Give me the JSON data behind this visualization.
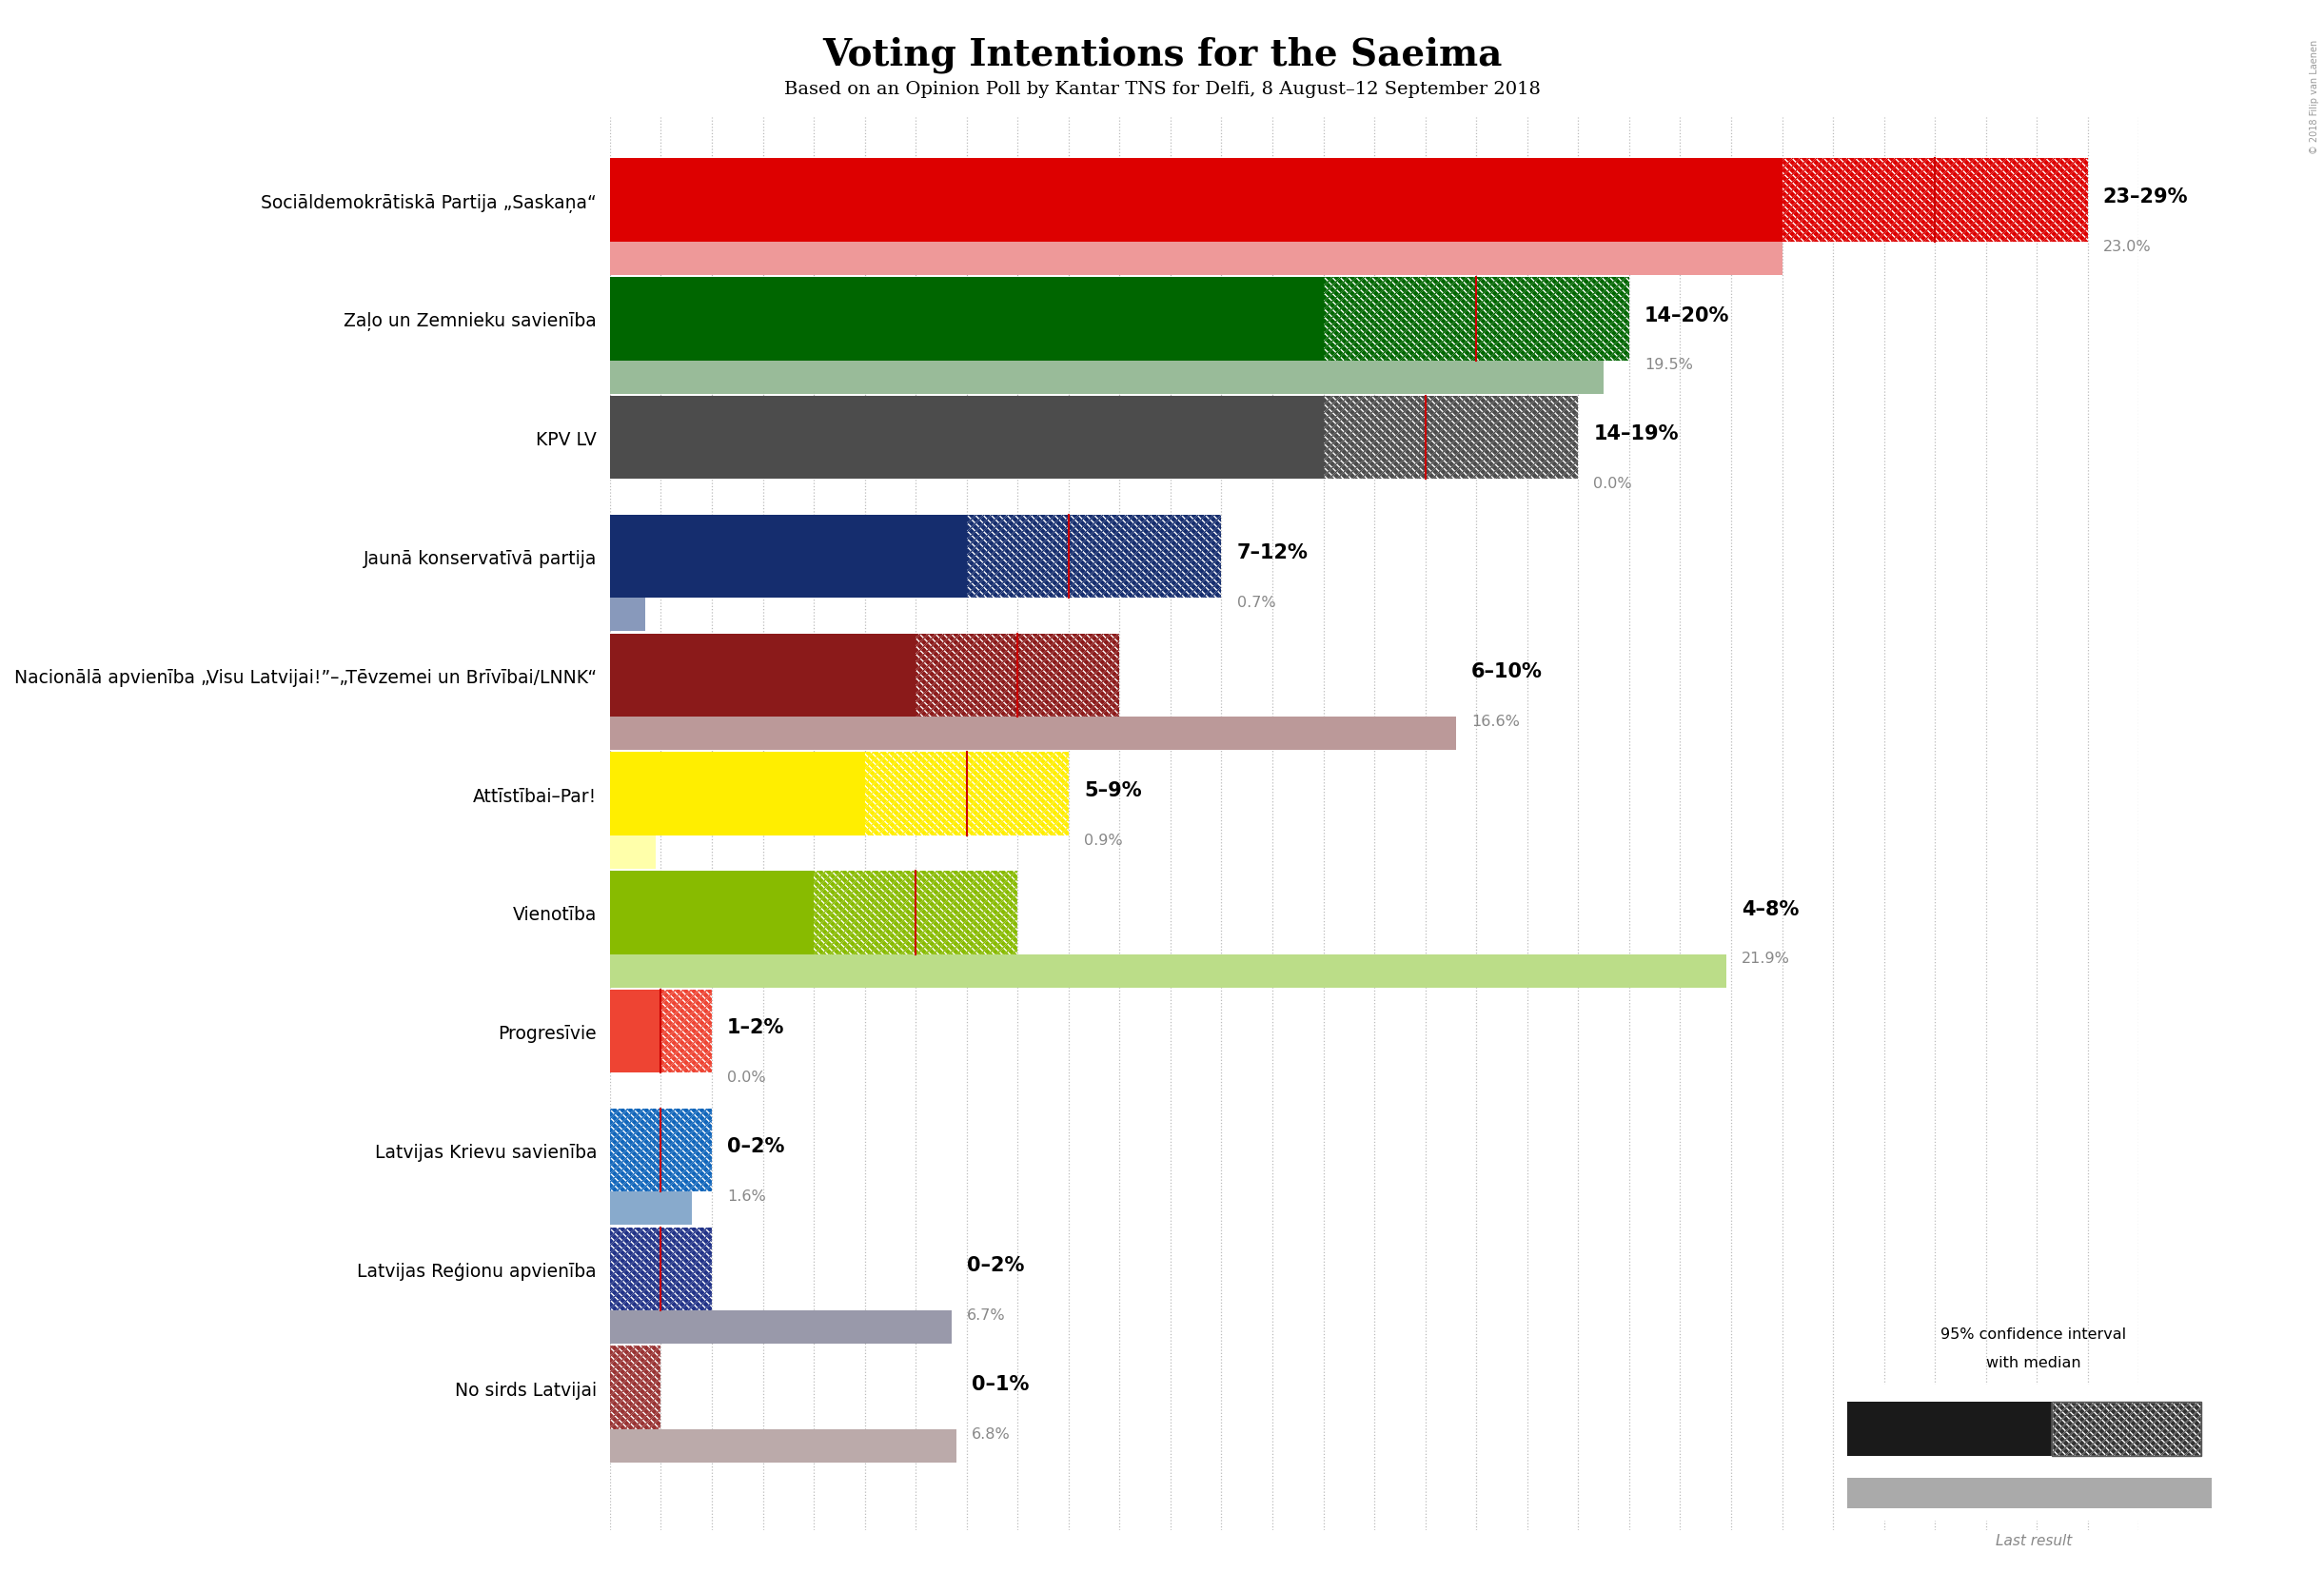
{
  "title": "Voting Intentions for the Saeima",
  "subtitle": "Based on an Opinion Poll by Kantar TNS for Delfi, 8 August–12 September 2018",
  "copyright": "© 2018 Filip van Laenen",
  "parties": [
    {
      "name": "Sociāldemokrātiskā Partija „Saskaņa“",
      "low": 23,
      "high": 29,
      "median": 26,
      "last": 23.0,
      "color": "#DD0000",
      "last_color": "#EE9999",
      "label": "23–29%",
      "last_label": "23.0%"
    },
    {
      "name": "Zaļo un Zemnieku savienība",
      "low": 14,
      "high": 20,
      "median": 17,
      "last": 19.5,
      "color": "#006600",
      "last_color": "#99BB99",
      "label": "14–20%",
      "last_label": "19.5%"
    },
    {
      "name": "KPV LV",
      "low": 14,
      "high": 19,
      "median": 16,
      "last": 0.0,
      "color": "#4C4C4C",
      "last_color": "#AAAAAA",
      "label": "14–19%",
      "last_label": "0.0%"
    },
    {
      "name": "Jaunā konservatīvā partija",
      "low": 7,
      "high": 12,
      "median": 9,
      "last": 0.7,
      "color": "#152D6E",
      "last_color": "#8899BB",
      "label": "7–12%",
      "last_label": "0.7%"
    },
    {
      "name": "Nacionālā apvienība „Visu Latvijai!”–„Tēvzemei un Brīvībai/LNNK“",
      "low": 6,
      "high": 10,
      "median": 8,
      "last": 16.6,
      "color": "#8B1A1A",
      "last_color": "#BB9999",
      "label": "6–10%",
      "last_label": "16.6%"
    },
    {
      "name": "Attīstībai–Par!",
      "low": 5,
      "high": 9,
      "median": 7,
      "last": 0.9,
      "color": "#FFEE00",
      "last_color": "#FFFFAA",
      "label": "5–9%",
      "last_label": "0.9%"
    },
    {
      "name": "Vienotība",
      "low": 4,
      "high": 8,
      "median": 6,
      "last": 21.9,
      "color": "#88BB00",
      "last_color": "#BBDD88",
      "label": "4–8%",
      "last_label": "21.9%"
    },
    {
      "name": "Progresīvie",
      "low": 1,
      "high": 2,
      "median": 1,
      "last": 0.0,
      "color": "#EE4433",
      "last_color": "#FFBBBB",
      "label": "1–2%",
      "last_label": "0.0%"
    },
    {
      "name": "Latvijas Krievu savienība",
      "low": 0,
      "high": 2,
      "median": 1,
      "last": 1.6,
      "color": "#1166BB",
      "last_color": "#88AACC",
      "label": "0–2%",
      "last_label": "1.6%"
    },
    {
      "name": "Latvijas Reģionu apvienība",
      "low": 0,
      "high": 2,
      "median": 1,
      "last": 6.7,
      "color": "#223388",
      "last_color": "#9999AA",
      "label": "0–2%",
      "last_label": "6.7%"
    },
    {
      "name": "No sirds Latvijai",
      "low": 0,
      "high": 1,
      "median": 0,
      "last": 6.8,
      "color": "#993333",
      "last_color": "#BBAAAA",
      "label": "0–1%",
      "last_label": "6.8%"
    }
  ],
  "xlim_max": 30,
  "bg_color": "#FFFFFF",
  "bar_height": 0.7,
  "last_bar_height": 0.28,
  "median_line_color": "#CC0000",
  "grid_color": "#BBBBBB",
  "legend_label1": "95% confidence interval",
  "legend_label2": "with median",
  "legend_label3": "Last result"
}
